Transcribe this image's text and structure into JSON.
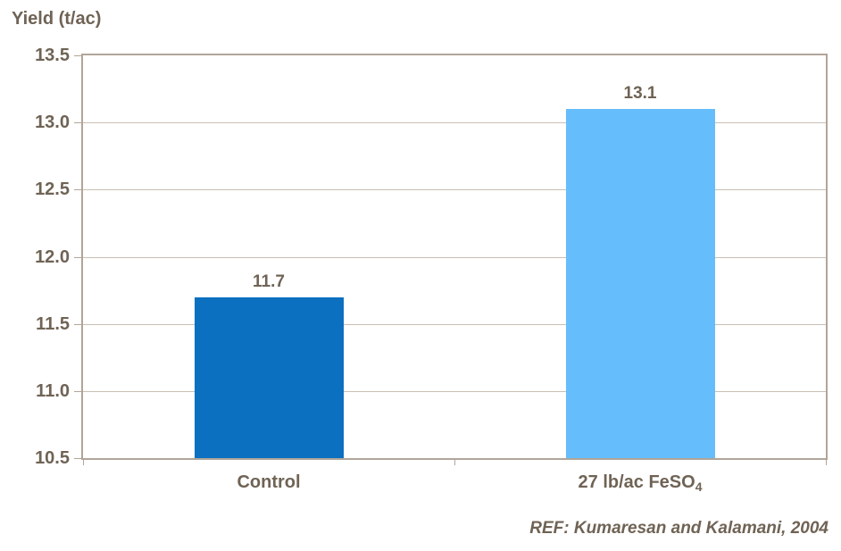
{
  "title": "Yield (t/ac)",
  "reference": "REF: Kumaresan and Kalamani, 2004",
  "colors": {
    "background": "#ffffff",
    "text": "#6f6355",
    "grid": "#c9bfb4",
    "border": "#b1a599",
    "bar_control": "#0b70c0",
    "bar_feso4": "#66bdfb"
  },
  "chart_data": {
    "type": "bar",
    "title": "Yield (t/ac)",
    "ylabel": "Yield (t/ac)",
    "xlabel": "",
    "categories": [
      "Control",
      "27 lb/ac FeSO4"
    ],
    "categories_display": [
      {
        "text": "Control",
        "sub": ""
      },
      {
        "text": "27 lb/ac FeSO",
        "sub": "4"
      }
    ],
    "values": [
      11.7,
      13.1
    ],
    "data_labels": [
      "11.7",
      "13.1"
    ],
    "bar_colors": [
      "#0b70c0",
      "#66bdfb"
    ],
    "ylim": [
      10.5,
      13.5
    ],
    "ytick_step": 0.5,
    "ytick_labels": [
      "13.5",
      "13.0",
      "12.5",
      "12.0",
      "11.5",
      "11.0",
      "10.5"
    ],
    "grid": true,
    "legend": false,
    "annotation": "REF: Kumaresan and Kalamani, 2004"
  }
}
